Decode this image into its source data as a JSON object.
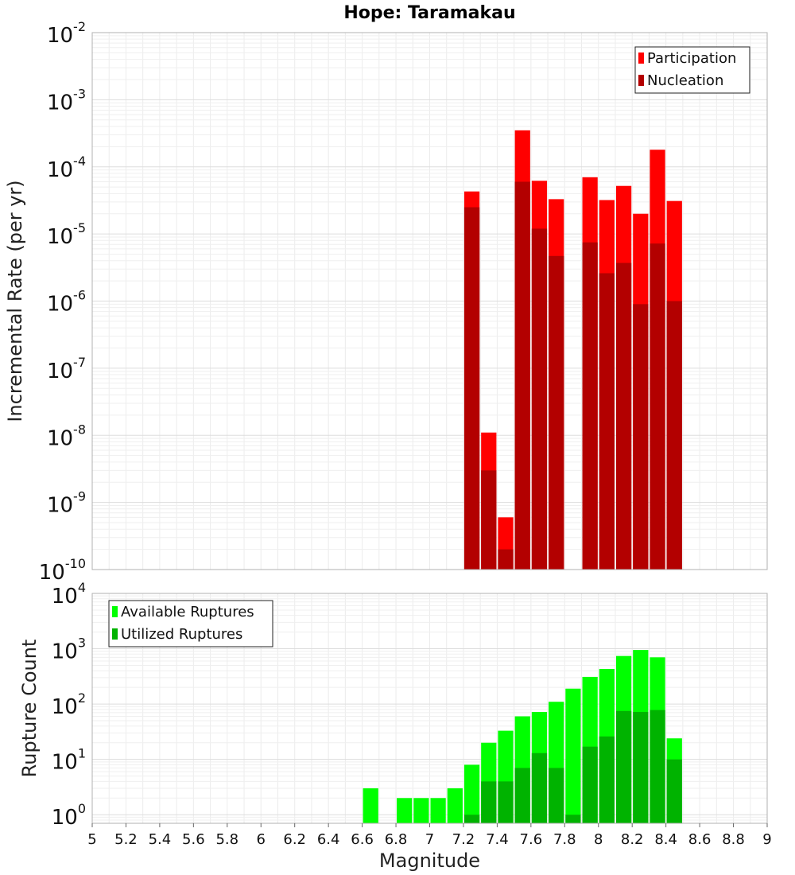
{
  "chart_data": [
    {
      "type": "bar",
      "panel": "top",
      "title": "Hope: Taramakau",
      "ylabel": "Incremental Rate (per yr)",
      "yscale": "log",
      "ylim": [
        1e-10,
        0.01
      ],
      "yticks": [
        {
          "base": "10",
          "exp": "-10",
          "value": 1e-10
        },
        {
          "base": "10",
          "exp": "-9",
          "value": 1e-09
        },
        {
          "base": "10",
          "exp": "-8",
          "value": 1e-08
        },
        {
          "base": "10",
          "exp": "-7",
          "value": 1e-07
        },
        {
          "base": "10",
          "exp": "-6",
          "value": 1e-06
        },
        {
          "base": "10",
          "exp": "-5",
          "value": 1e-05
        },
        {
          "base": "10",
          "exp": "-4",
          "value": 0.0001
        },
        {
          "base": "10",
          "exp": "-3",
          "value": 0.001
        },
        {
          "base": "10",
          "exp": "-2",
          "value": 0.01
        }
      ],
      "xlim": [
        5,
        9
      ],
      "grid": true,
      "legend_position": "top-right",
      "x": [
        7.25,
        7.35,
        7.45,
        7.55,
        7.65,
        7.75,
        7.95,
        8.05,
        8.15,
        8.25,
        8.35,
        8.45
      ],
      "series": [
        {
          "name": "Participation",
          "color": "#ff0000",
          "values": [
            4.3e-05,
            1.1e-08,
            6e-10,
            0.00035,
            6.2e-05,
            3.3e-05,
            7e-05,
            3.2e-05,
            5.2e-05,
            2e-05,
            0.00018,
            3.1e-05
          ]
        },
        {
          "name": "Nucleation",
          "color": "#b30000",
          "values": [
            2.5e-05,
            3e-09,
            2e-10,
            6e-05,
            1.2e-05,
            4.7e-06,
            7.5e-06,
            2.6e-06,
            3.7e-06,
            9e-07,
            7.2e-06,
            1e-06
          ]
        }
      ]
    },
    {
      "type": "bar",
      "panel": "bottom",
      "xlabel": "Magnitude",
      "ylabel": "Rupture Count",
      "yscale": "log",
      "ylim": [
        0.7,
        10000
      ],
      "yticks": [
        {
          "base": "10",
          "exp": "0",
          "value": 1
        },
        {
          "base": "10",
          "exp": "1",
          "value": 10
        },
        {
          "base": "10",
          "exp": "2",
          "value": 100
        },
        {
          "base": "10",
          "exp": "3",
          "value": 1000
        },
        {
          "base": "10",
          "exp": "4",
          "value": 10000
        }
      ],
      "xlim": [
        5,
        9
      ],
      "xticks": [
        "5",
        "5.2",
        "5.4",
        "5.6",
        "5.8",
        "6",
        "6.2",
        "6.4",
        "6.6",
        "6.8",
        "7",
        "7.2",
        "7.4",
        "7.6",
        "7.8",
        "8",
        "8.2",
        "8.4",
        "8.6",
        "8.8",
        "9"
      ],
      "grid": true,
      "legend_position": "top-left",
      "x": [
        6.65,
        6.85,
        6.95,
        7.05,
        7.15,
        7.25,
        7.35,
        7.45,
        7.55,
        7.65,
        7.75,
        7.85,
        7.95,
        8.05,
        8.15,
        8.25,
        8.35,
        8.45
      ],
      "series": [
        {
          "name": "Available Ruptures",
          "color": "#00ff00",
          "values": [
            3,
            2,
            2,
            2,
            3,
            8,
            20,
            33,
            60,
            72,
            110,
            190,
            310,
            430,
            740,
            950,
            700,
            24
          ]
        },
        {
          "name": "Utilized Ruptures",
          "color": "#00b300",
          "values": [
            0,
            0,
            0,
            0,
            0,
            1,
            4,
            4,
            7,
            13,
            7,
            1,
            17,
            26,
            75,
            72,
            78,
            10
          ]
        }
      ]
    }
  ]
}
